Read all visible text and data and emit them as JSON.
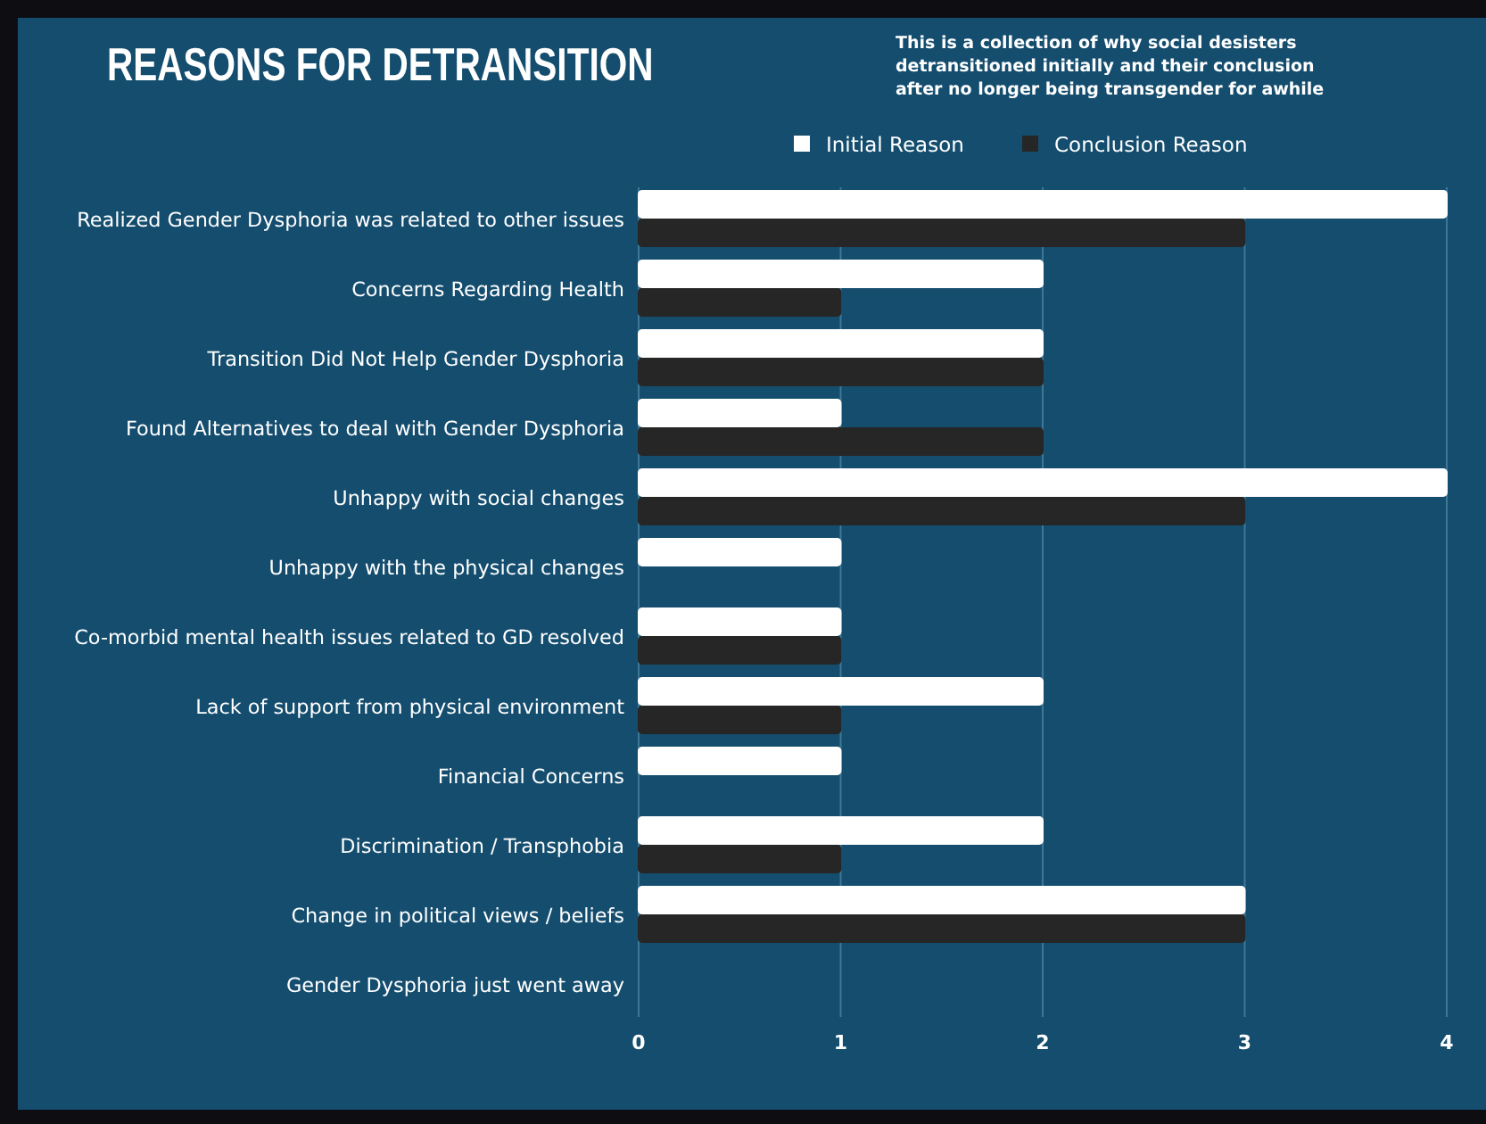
{
  "chart_data": {
    "type": "bar",
    "orientation": "horizontal",
    "title": "REASONS FOR DETRANSITION",
    "subtitle": "This is a collection of why social desisters detransitioned initially and their conclusion after no longer being transgender for awhile",
    "categories": [
      "Realized Gender Dysphoria was related to other issues",
      "Concerns Regarding Health",
      "Transition Did Not Help Gender Dysphoria",
      "Found Alternatives to deal with Gender Dysphoria",
      "Unhappy with social changes",
      "Unhappy with the physical changes",
      "Co-morbid mental health issues related to GD resolved",
      "Lack of support from physical environment",
      "Financial Concerns",
      "Discrimination / Transphobia",
      "Change in political views / beliefs",
      "Gender Dysphoria just went away"
    ],
    "series": [
      {
        "name": "Initial Reason",
        "color": "#ffffff",
        "values": [
          4,
          2,
          2,
          1,
          4,
          1,
          1,
          2,
          1,
          2,
          3,
          0
        ]
      },
      {
        "name": "Conclusion Reason",
        "color": "#262626",
        "values": [
          3,
          1,
          2,
          2,
          3,
          0,
          1,
          1,
          0,
          1,
          3,
          0
        ]
      }
    ],
    "xlim": [
      0,
      4
    ],
    "xticks": [
      0,
      1,
      2,
      3,
      4
    ],
    "grid": "x",
    "legend": "top"
  }
}
